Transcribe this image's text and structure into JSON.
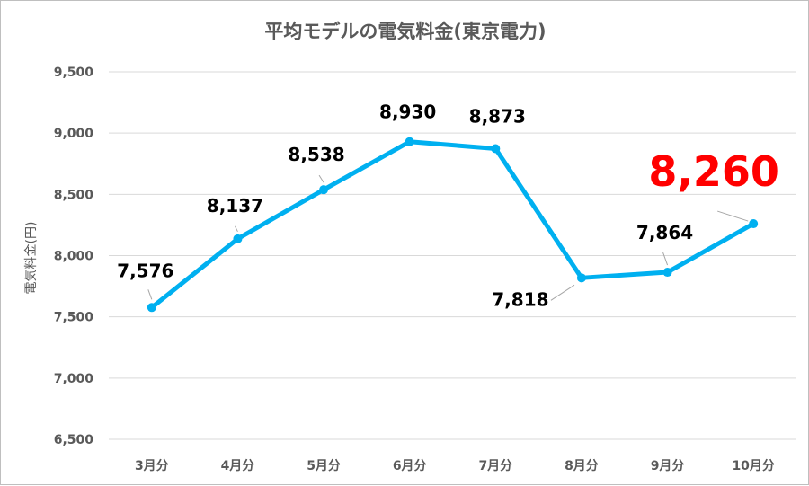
{
  "chart_data": {
    "type": "line",
    "title": "平均モデルの電気料金(東京電力)",
    "ylabel": "電気料金(円)",
    "xlabel": "",
    "categories": [
      "3月分",
      "4月分",
      "5月分",
      "6月分",
      "7月分",
      "8月分",
      "9月分",
      "10月分"
    ],
    "series": [
      {
        "values": [
          7576,
          8137,
          8538,
          8930,
          8873,
          7818,
          7864,
          8260
        ],
        "labels": [
          "7,576",
          "8,137",
          "8,538",
          "8,930",
          "8,873",
          "7,818",
          "7,864",
          "8,260"
        ],
        "color": "#00b0f0"
      }
    ],
    "ylim": [
      6500,
      9500
    ],
    "yticks": [
      6500,
      7000,
      7500,
      8000,
      8500,
      9000,
      9500
    ],
    "ytick_labels": [
      "6,500",
      "7,000",
      "7,500",
      "8,000",
      "8,500",
      "9,000",
      "9,500"
    ],
    "grid": true,
    "legend": "none",
    "highlight": {
      "index": 7,
      "color": "#ff0000"
    }
  }
}
